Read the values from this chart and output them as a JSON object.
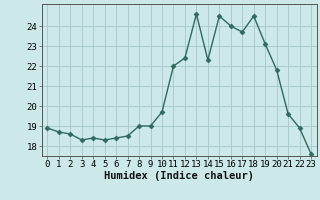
{
  "xlabel": "Humidex (Indice chaleur)",
  "x": [
    0,
    1,
    2,
    3,
    4,
    5,
    6,
    7,
    8,
    9,
    10,
    11,
    12,
    13,
    14,
    15,
    16,
    17,
    18,
    19,
    20,
    21,
    22,
    23
  ],
  "y": [
    18.9,
    18.7,
    18.6,
    18.3,
    18.4,
    18.3,
    18.4,
    18.5,
    19.0,
    19.0,
    19.7,
    22.0,
    22.4,
    24.6,
    22.3,
    24.5,
    24.0,
    23.7,
    24.5,
    23.1,
    21.8,
    19.6,
    18.9,
    17.6
  ],
  "line_color": "#2e6b5e",
  "marker": "D",
  "marker_size": 2.5,
  "bg_color": "#cce8e8",
  "grid_color": "#aacccc",
  "ylim": [
    17.5,
    25.1
  ],
  "yticks": [
    18,
    19,
    20,
    21,
    22,
    23,
    24
  ],
  "xticks": [
    0,
    1,
    2,
    3,
    4,
    5,
    6,
    7,
    8,
    9,
    10,
    11,
    12,
    13,
    14,
    15,
    16,
    17,
    18,
    19,
    20,
    21,
    22,
    23
  ],
  "xlabel_fontsize": 7.5,
  "tick_fontsize": 6.5,
  "line_width": 1.0
}
